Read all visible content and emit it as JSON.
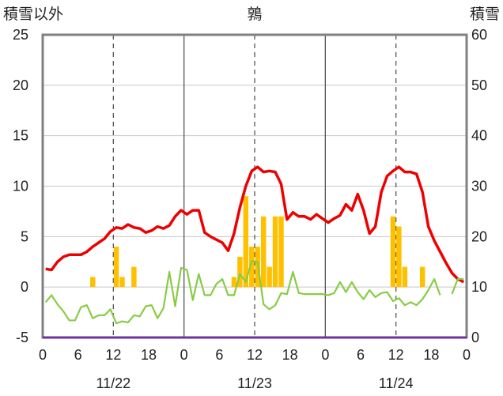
{
  "chart_data": {
    "type": "bar+line",
    "title": "鶉",
    "left_axis_label": "積雪以外",
    "right_axis_label": "積雪",
    "y_left": {
      "min": -5,
      "max": 25,
      "ticks": [
        -5,
        0,
        5,
        10,
        15,
        20,
        25
      ]
    },
    "y_right": {
      "min": 0,
      "max": 60,
      "ticks": [
        0,
        10,
        20,
        30,
        40,
        50,
        60
      ]
    },
    "x": {
      "hours_total": 72,
      "tick_labels": [
        "0",
        "6",
        "12",
        "18",
        "0",
        "6",
        "12",
        "18",
        "0",
        "6",
        "12",
        "18",
        "0"
      ],
      "date_labels": [
        "11/22",
        "11/23",
        "11/24"
      ]
    },
    "grid": true,
    "colors": {
      "red": "#ee0000",
      "green": "#88cc44",
      "bar": "#ffc000",
      "frame": "#808080",
      "baseline": "#7030a0"
    },
    "series": [
      {
        "type": "bar",
        "axis": "left",
        "values": [
          [
            8,
            1
          ],
          [
            12,
            4
          ],
          [
            13,
            1
          ],
          [
            15,
            2
          ],
          [
            32,
            1
          ],
          [
            33,
            3
          ],
          [
            34,
            9
          ],
          [
            35,
            4
          ],
          [
            36,
            4
          ],
          [
            37,
            7
          ],
          [
            38,
            2
          ],
          [
            39,
            7
          ],
          [
            40,
            7
          ],
          [
            59,
            7
          ],
          [
            60,
            6
          ],
          [
            61,
            2
          ],
          [
            64,
            2
          ]
        ]
      },
      {
        "type": "line",
        "axis": "left",
        "color": "#ee0000",
        "values": [
          [
            0,
            1.8
          ],
          [
            1,
            1.7
          ],
          [
            2,
            2.5
          ],
          [
            3,
            3
          ],
          [
            4,
            3.2
          ],
          [
            5,
            3.2
          ],
          [
            6,
            3.2
          ],
          [
            7,
            3.5
          ],
          [
            8,
            4
          ],
          [
            9,
            4.4
          ],
          [
            10,
            4.8
          ],
          [
            11,
            5.5
          ],
          [
            12,
            5.9
          ],
          [
            13,
            5.8
          ],
          [
            14,
            6.2
          ],
          [
            15,
            5.9
          ],
          [
            16,
            5.8
          ],
          [
            17,
            5.4
          ],
          [
            18,
            5.6
          ],
          [
            19,
            6
          ],
          [
            20,
            5.8
          ],
          [
            21,
            6.1
          ],
          [
            22,
            7
          ],
          [
            23,
            7.6
          ],
          [
            24,
            7.2
          ],
          [
            25,
            7.6
          ],
          [
            26,
            7.6
          ],
          [
            27,
            5.4
          ],
          [
            28,
            5
          ],
          [
            29,
            4.7
          ],
          [
            30,
            4.4
          ],
          [
            31,
            3.6
          ],
          [
            32,
            5.3
          ],
          [
            33,
            7.9
          ],
          [
            34,
            10
          ],
          [
            35,
            11.5
          ],
          [
            36,
            11.9
          ],
          [
            37,
            11.4
          ],
          [
            38,
            11.5
          ],
          [
            39,
            11.4
          ],
          [
            40,
            10.2
          ],
          [
            41,
            6.7
          ],
          [
            42,
            7.4
          ],
          [
            43,
            7
          ],
          [
            44,
            7
          ],
          [
            45,
            6.7
          ],
          [
            46,
            7.2
          ],
          [
            47,
            6.8
          ],
          [
            48,
            6.4
          ],
          [
            49,
            6.8
          ],
          [
            50,
            7.1
          ],
          [
            51,
            8.2
          ],
          [
            52,
            7.6
          ],
          [
            53,
            9.2
          ],
          [
            54,
            7.6
          ],
          [
            55,
            5.3
          ],
          [
            56,
            6
          ],
          [
            57,
            9.4
          ],
          [
            58,
            11
          ],
          [
            59,
            11.5
          ],
          [
            60,
            11.9
          ],
          [
            61,
            11.4
          ],
          [
            62,
            11.4
          ],
          [
            63,
            11.2
          ],
          [
            64,
            9.4
          ],
          [
            65,
            6
          ],
          [
            66,
            4.6
          ],
          [
            67,
            3.5
          ],
          [
            68,
            2.4
          ],
          [
            69,
            1.4
          ],
          [
            70,
            0.8
          ],
          [
            71,
            0.5
          ]
        ]
      },
      {
        "type": "line",
        "axis": "left",
        "color": "#88cc44",
        "values": [
          [
            0,
            -1.5
          ],
          [
            1,
            -0.8
          ],
          [
            2,
            -1.7
          ],
          [
            3,
            -2.4
          ],
          [
            4,
            -3.3
          ],
          [
            5,
            -3.3
          ],
          [
            6,
            -2
          ],
          [
            7,
            -1.8
          ],
          [
            8,
            -3.1
          ],
          [
            9,
            -2.8
          ],
          [
            10,
            -2.8
          ],
          [
            11,
            -2.2
          ],
          [
            12,
            -3.6
          ],
          [
            13,
            -3.4
          ],
          [
            14,
            -3.5
          ],
          [
            15,
            -2.8
          ],
          [
            16,
            -2.9
          ],
          [
            17,
            -1.9
          ],
          [
            18,
            -1.8
          ],
          [
            19,
            -3.1
          ],
          [
            20,
            -2.1
          ],
          [
            21,
            1.5
          ],
          [
            22,
            -1.9
          ],
          [
            23,
            1.9
          ],
          [
            24,
            1.7
          ],
          [
            25,
            -1.3
          ],
          [
            26,
            1.3
          ],
          [
            27,
            -0.8
          ],
          [
            28,
            -0.8
          ],
          [
            29,
            0.3
          ],
          [
            30,
            0.8
          ],
          [
            31,
            -0.8
          ],
          [
            32,
            -0.8
          ],
          [
            33,
            1.3
          ],
          [
            34,
            0.5
          ],
          [
            35,
            2.6
          ],
          [
            36,
            2.5
          ],
          [
            37,
            -1.7
          ],
          [
            38,
            -2.2
          ],
          [
            39,
            -1.8
          ],
          [
            40,
            -0.6
          ],
          [
            41,
            -0.7
          ],
          [
            42,
            1.5
          ],
          [
            43,
            -0.6
          ],
          [
            44,
            -0.7
          ],
          [
            45,
            -0.7
          ],
          [
            46,
            -0.7
          ],
          [
            47,
            -0.7
          ],
          [
            48,
            -0.8
          ],
          [
            49,
            -0.6
          ],
          [
            50,
            0.5
          ],
          [
            51,
            -0.5
          ],
          [
            52,
            0.5
          ],
          [
            53,
            -0.5
          ],
          [
            54,
            -1.2
          ],
          [
            55,
            -0.3
          ],
          [
            56,
            -1
          ],
          [
            57,
            -0.6
          ],
          [
            58,
            -0.5
          ],
          [
            59,
            -1.4
          ],
          [
            60,
            -1.1
          ],
          [
            61,
            -1.8
          ],
          [
            62,
            -1.5
          ],
          [
            63,
            -1.8
          ],
          [
            64,
            -1.2
          ],
          [
            65,
            -0.3
          ],
          [
            66,
            0.8
          ],
          [
            67,
            -0.8
          ],
          [
            68,
            null
          ],
          [
            69,
            -0.7
          ],
          [
            70,
            0.8
          ],
          [
            71,
            0.8
          ]
        ]
      }
    ]
  }
}
